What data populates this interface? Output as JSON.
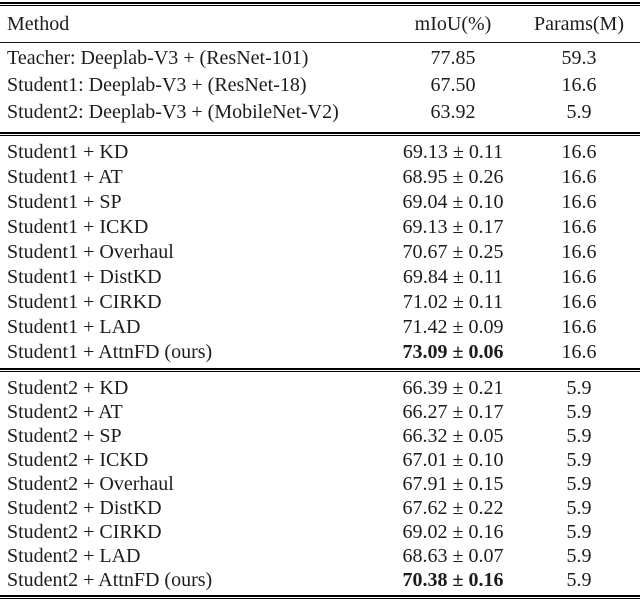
{
  "page": {
    "background": "#ffffff",
    "text_color": "#1c1c1c",
    "rule_color": "#000000"
  },
  "table": {
    "columns": [
      "Method",
      "mIoU(%)",
      "Params(M)"
    ],
    "sections": [
      {
        "name": "baselines",
        "rows": [
          {
            "method": "Teacher: Deeplab-V3 + (ResNet-101)",
            "miou": "77.85",
            "params": "59.3",
            "bold": false
          },
          {
            "method": "Student1: Deeplab-V3 + (ResNet-18)",
            "miou": "67.50",
            "params": "16.6",
            "bold": false
          },
          {
            "method": "Student2: Deeplab-V3 + (MobileNet-V2)",
            "miou": "63.92",
            "params": "5.9",
            "bold": false
          }
        ]
      },
      {
        "name": "student1",
        "rows": [
          {
            "method": "Student1 + KD",
            "miou": "69.13 ± 0.11",
            "params": "16.6",
            "bold": false
          },
          {
            "method": "Student1 + AT",
            "miou": "68.95 ± 0.26",
            "params": "16.6",
            "bold": false
          },
          {
            "method": "Student1 + SP",
            "miou": "69.04 ± 0.10",
            "params": "16.6",
            "bold": false
          },
          {
            "method": "Student1 + ICKD",
            "miou": "69.13 ± 0.17",
            "params": "16.6",
            "bold": false
          },
          {
            "method": "Student1 + Overhaul",
            "miou": "70.67 ± 0.25",
            "params": "16.6",
            "bold": false
          },
          {
            "method": "Student1 + DistKD",
            "miou": "69.84 ± 0.11",
            "params": "16.6",
            "bold": false
          },
          {
            "method": "Student1 + CIRKD",
            "miou": "71.02 ± 0.11",
            "params": "16.6",
            "bold": false
          },
          {
            "method": "Student1 + LAD",
            "miou": "71.42 ± 0.09",
            "params": "16.6",
            "bold": false
          },
          {
            "method": "Student1 + AttnFD (ours)",
            "miou": "73.09 ± 0.06",
            "params": "16.6",
            "bold": true
          }
        ]
      },
      {
        "name": "student2",
        "rows": [
          {
            "method": "Student2 + KD",
            "miou": "66.39 ± 0.21",
            "params": "5.9",
            "bold": false
          },
          {
            "method": "Student2 + AT",
            "miou": "66.27 ± 0.17",
            "params": "5.9",
            "bold": false
          },
          {
            "method": "Student2 + SP",
            "miou": "66.32 ± 0.05",
            "params": "5.9",
            "bold": false
          },
          {
            "method": "Student2 + ICKD",
            "miou": "67.01 ± 0.10",
            "params": "5.9",
            "bold": false
          },
          {
            "method": "Student2 + Overhaul",
            "miou": "67.91 ± 0.15",
            "params": "5.9",
            "bold": false
          },
          {
            "method": "Student2 + DistKD",
            "miou": "67.62 ± 0.22",
            "params": "5.9",
            "bold": false
          },
          {
            "method": "Student2 + CIRKD",
            "miou": "69.02 ± 0.16",
            "params": "5.9",
            "bold": false
          },
          {
            "method": "Student2 + LAD",
            "miou": "68.63 ± 0.07",
            "params": "5.9",
            "bold": false
          },
          {
            "method": "Student2 + AttnFD (ours)",
            "miou": "70.38 ± 0.16",
            "params": "5.9",
            "bold": true
          }
        ]
      }
    ]
  }
}
